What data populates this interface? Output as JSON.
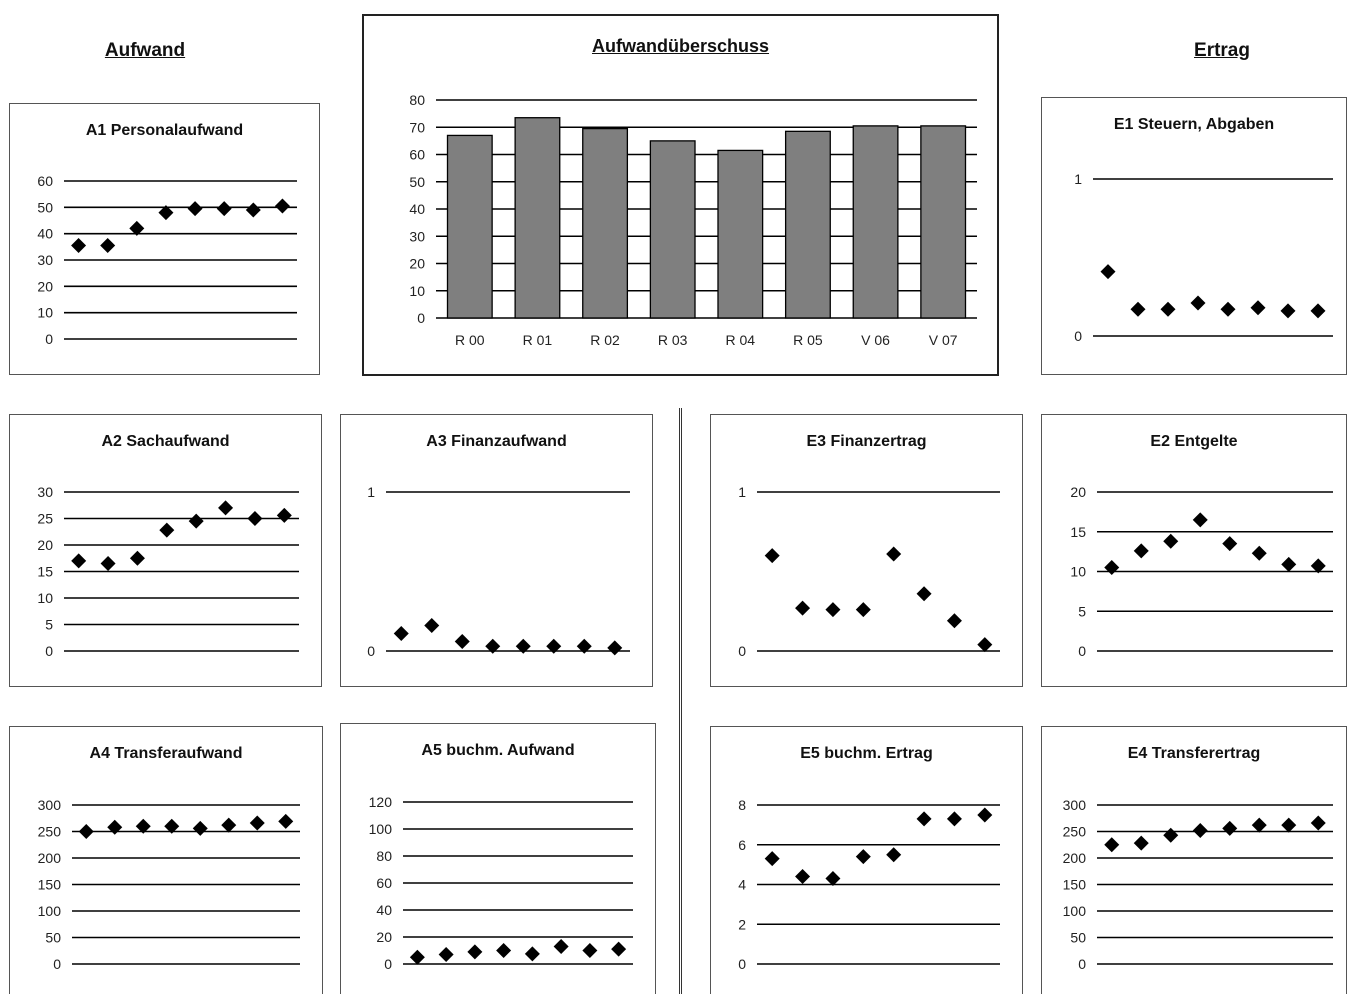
{
  "headers": {
    "aufwand": "Aufwand",
    "ertrag": "Ertrag"
  },
  "chart_data": [
    {
      "id": "main",
      "type": "bar",
      "title": "Aufwandüberschuss",
      "categories": [
        "R 00",
        "R 01",
        "R 02",
        "R 03",
        "R 04",
        "R 05",
        "V 06",
        "V 07"
      ],
      "values": [
        67,
        73.5,
        69.5,
        65,
        61.5,
        68.5,
        70.5,
        70.5
      ],
      "ylim": [
        0,
        80
      ],
      "yticks": [
        "0",
        "10",
        "20",
        "30",
        "40",
        "50",
        "60",
        "70",
        "80"
      ],
      "grid": true,
      "bar_color": "#7f7f7f"
    },
    {
      "id": "a1",
      "type": "scatter",
      "title": "A1 Personalaufwand",
      "values": [
        35.5,
        35.5,
        42,
        48,
        49.5,
        49.5,
        49,
        50.5
      ],
      "ylim": [
        0,
        60
      ],
      "yticks": [
        "0",
        "10",
        "20",
        "30",
        "40",
        "50",
        "60"
      ]
    },
    {
      "id": "e1",
      "type": "scatter",
      "title": "E1 Steuern, Abgaben",
      "values": [
        0.41,
        0.17,
        0.17,
        0.21,
        0.17,
        0.18,
        0.16,
        0.16
      ],
      "ylim": [
        0,
        1
      ],
      "yticks": [
        "0",
        "1"
      ]
    },
    {
      "id": "a2",
      "type": "scatter",
      "title": "A2 Sachaufwand",
      "values": [
        17,
        16.5,
        17.5,
        22.8,
        24.5,
        27,
        25,
        25.6
      ],
      "ylim": [
        0,
        30
      ],
      "yticks": [
        "0",
        "5",
        "10",
        "15",
        "20",
        "25",
        "30"
      ]
    },
    {
      "id": "a3",
      "type": "scatter",
      "title": "A3 Finanzaufwand",
      "values": [
        0.11,
        0.16,
        0.06,
        0.03,
        0.03,
        0.03,
        0.03,
        0.02
      ],
      "ylim": [
        0,
        1
      ],
      "yticks": [
        "0",
        "1"
      ]
    },
    {
      "id": "e3",
      "type": "scatter",
      "title": "E3 Finanzertrag",
      "values": [
        0.6,
        0.27,
        0.26,
        0.26,
        0.61,
        0.36,
        0.19,
        0.04
      ],
      "ylim": [
        0,
        1
      ],
      "yticks": [
        "0",
        "1"
      ]
    },
    {
      "id": "e2",
      "type": "scatter",
      "title": "E2 Entgelte",
      "values": [
        10.5,
        12.6,
        13.8,
        16.5,
        13.5,
        12.3,
        10.9,
        10.7
      ],
      "ylim": [
        0,
        20
      ],
      "yticks": [
        "0",
        "5",
        "10",
        "15",
        "20"
      ]
    },
    {
      "id": "a4",
      "type": "scatter",
      "title": "A4 Transferaufwand",
      "values": [
        250,
        258,
        260,
        260,
        256,
        262,
        266,
        269
      ],
      "ylim": [
        0,
        300
      ],
      "yticks": [
        "0",
        "50",
        "100",
        "150",
        "200",
        "250",
        "300"
      ]
    },
    {
      "id": "a5",
      "type": "scatter",
      "title": "A5 buchm. Aufwand",
      "values": [
        5,
        7,
        9,
        10,
        7.5,
        13,
        10,
        11
      ],
      "ylim": [
        0,
        120
      ],
      "yticks": [
        "0",
        "20",
        "40",
        "60",
        "80",
        "100",
        "120"
      ]
    },
    {
      "id": "e5",
      "type": "scatter",
      "title": "E5 buchm. Ertrag",
      "values": [
        5.3,
        4.4,
        4.3,
        5.4,
        5.5,
        7.3,
        7.3,
        7.5
      ],
      "ylim": [
        0,
        8
      ],
      "yticks": [
        "0",
        "2",
        "4",
        "6",
        "8"
      ]
    },
    {
      "id": "e4",
      "type": "scatter",
      "title": "E4 Transferertrag",
      "values": [
        225,
        228,
        243,
        252,
        256,
        262,
        262,
        266
      ],
      "ylim": [
        0,
        300
      ],
      "yticks": [
        "0",
        "50",
        "100",
        "150",
        "200",
        "250",
        "300"
      ]
    }
  ]
}
